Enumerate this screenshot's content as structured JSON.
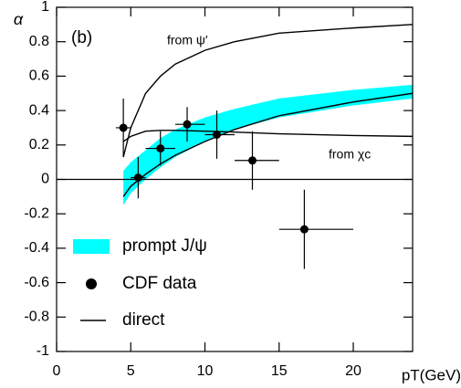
{
  "chart_data": {
    "type": "line",
    "panel_label": "(b)",
    "x_label": "pT(GeV)",
    "y_label": "α",
    "xlim": [
      0,
      24
    ],
    "ylim": [
      -1,
      1
    ],
    "xticks": [
      0,
      5,
      10,
      15,
      20
    ],
    "yticks": [
      -1,
      -0.8,
      -0.6,
      -0.4,
      -0.2,
      0,
      0.2,
      0.4,
      0.6,
      0.8,
      1
    ],
    "x": [
      4.5,
      5,
      6,
      7,
      8,
      10,
      12,
      15,
      20,
      24
    ],
    "series": [
      {
        "name": "prompt J/ψ",
        "kind": "band",
        "color": "#00ffff",
        "lower": [
          -0.15,
          -0.08,
          0.0,
          0.07,
          0.13,
          0.22,
          0.29,
          0.36,
          0.43,
          0.47
        ],
        "upper": [
          0.05,
          0.1,
          0.17,
          0.24,
          0.29,
          0.36,
          0.41,
          0.47,
          0.52,
          0.55
        ]
      },
      {
        "name": "CDF data",
        "kind": "points",
        "color": "#000000",
        "x": [
          4.5,
          5.5,
          7,
          8.8,
          10.8,
          13.2,
          16.7
        ],
        "values": [
          0.3,
          0.01,
          0.18,
          0.32,
          0.26,
          0.11,
          -0.29
        ],
        "yerr": [
          0.17,
          0.12,
          0.1,
          0.1,
          0.14,
          0.17,
          0.23
        ],
        "xmin": [
          4,
          5,
          6,
          8,
          10,
          12,
          15
        ],
        "xmax": [
          5,
          6,
          8,
          10,
          12,
          15,
          20
        ]
      },
      {
        "name": "direct",
        "kind": "line",
        "color": "#000000",
        "values": [
          -0.1,
          -0.04,
          0.03,
          0.09,
          0.14,
          0.22,
          0.29,
          0.37,
          0.45,
          0.5
        ]
      }
    ],
    "curves": [
      {
        "label": "from ψ′",
        "color": "#000000",
        "values": [
          0.13,
          0.3,
          0.5,
          0.6,
          0.67,
          0.75,
          0.8,
          0.85,
          0.88,
          0.9
        ]
      },
      {
        "label": "from χc",
        "color": "#000000",
        "values": [
          0.22,
          0.25,
          0.28,
          0.285,
          0.285,
          0.28,
          0.275,
          0.265,
          0.255,
          0.25
        ]
      }
    ]
  }
}
